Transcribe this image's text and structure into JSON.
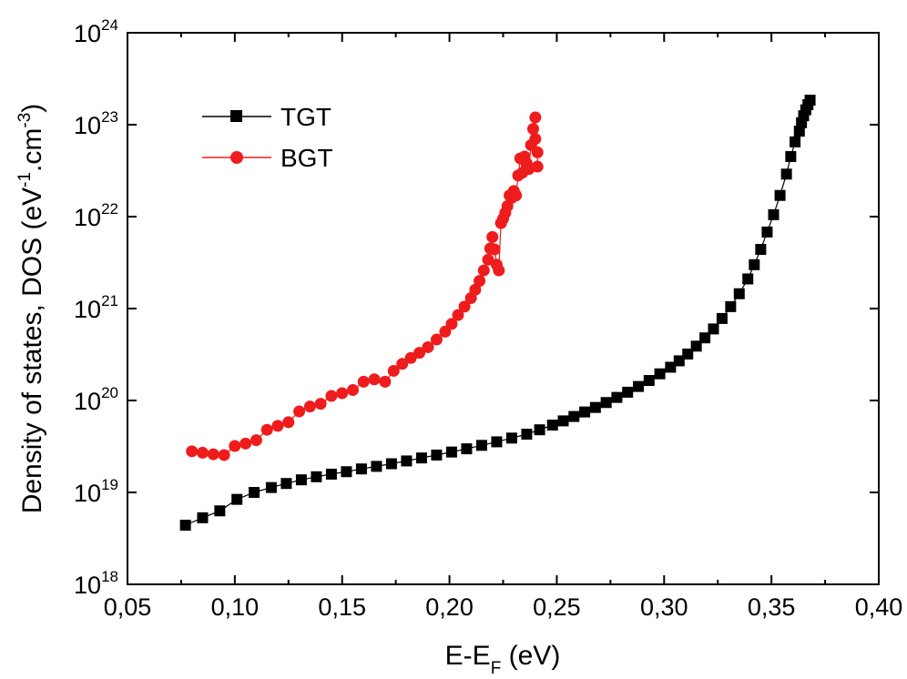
{
  "chart_data": {
    "type": "scatter",
    "title": "",
    "xlabel": {
      "main": "E-E",
      "sub": "F",
      "unit": " (eV)"
    },
    "ylabel": {
      "main": "Density of states, DOS (eV",
      "sup1": "-1",
      "mid": ".cm",
      "sup2": "-3",
      "end": ")"
    },
    "x_scale": "linear",
    "y_scale": "log",
    "xlim": [
      0.05,
      0.4
    ],
    "ylim": [
      1e+18,
      1e+24
    ],
    "x_ticks": [
      "0,05",
      "0,10",
      "0,15",
      "0,20",
      "0,25",
      "0,30",
      "0,35",
      "0,40"
    ],
    "x_tick_values": [
      0.05,
      0.1,
      0.15,
      0.2,
      0.25,
      0.3,
      0.35,
      0.4
    ],
    "y_ticks": [
      {
        "base": "10",
        "exp": "18",
        "value": 1e+18
      },
      {
        "base": "10",
        "exp": "19",
        "value": 1e+19
      },
      {
        "base": "10",
        "exp": "20",
        "value": 1e+20
      },
      {
        "base": "10",
        "exp": "21",
        "value": 1e+21
      },
      {
        "base": "10",
        "exp": "22",
        "value": 1e+22
      },
      {
        "base": "10",
        "exp": "23",
        "value": 1e+23
      },
      {
        "base": "10",
        "exp": "24",
        "value": 1e+24
      }
    ],
    "grid": false,
    "legend_position": "top-left",
    "series": [
      {
        "name": "TGT",
        "marker": "square",
        "color": "#000000",
        "x": [
          0.077,
          0.085,
          0.093,
          0.101,
          0.109,
          0.117,
          0.124,
          0.131,
          0.138,
          0.145,
          0.152,
          0.159,
          0.166,
          0.173,
          0.18,
          0.187,
          0.194,
          0.201,
          0.208,
          0.215,
          0.222,
          0.229,
          0.236,
          0.242,
          0.248,
          0.253,
          0.258,
          0.263,
          0.268,
          0.273,
          0.278,
          0.283,
          0.288,
          0.293,
          0.298,
          0.303,
          0.307,
          0.311,
          0.315,
          0.319,
          0.323,
          0.327,
          0.331,
          0.335,
          0.339,
          0.342,
          0.345,
          0.348,
          0.351,
          0.354,
          0.357,
          0.359,
          0.361,
          0.363,
          0.364,
          0.365,
          0.366,
          0.367,
          0.368
        ],
        "y": [
          4.4e+18,
          5.3e+18,
          6.3e+18,
          8.4e+18,
          1e+19,
          1.13e+19,
          1.25e+19,
          1.37e+19,
          1.48e+19,
          1.58e+19,
          1.68e+19,
          1.8e+19,
          1.92e+19,
          2.05e+19,
          2.2e+19,
          2.37e+19,
          2.55e+19,
          2.75e+19,
          2.98e+19,
          3.25e+19,
          3.55e+19,
          3.9e+19,
          4.3e+19,
          4.8e+19,
          5.4e+19,
          6e+19,
          6.7e+19,
          7.5e+19,
          8.4e+19,
          9.5e+19,
          1.08e+20,
          1.23e+20,
          1.42e+20,
          1.65e+20,
          1.95e+20,
          2.3e+20,
          2.7e+20,
          3.2e+20,
          3.9e+20,
          4.8e+20,
          6e+20,
          7.8e+20,
          1.05e+21,
          1.45e+21,
          2.1e+21,
          3e+21,
          4.4e+21,
          6.8e+21,
          1.05e+22,
          1.7e+22,
          2.9e+22,
          4.5e+22,
          6.5e+22,
          8.5e+22,
          1.05e+23,
          1.25e+23,
          1.45e+23,
          1.65e+23,
          1.85e+23
        ]
      },
      {
        "name": "BGT",
        "marker": "circle",
        "color": "#ee1c1c",
        "x": [
          0.08,
          0.085,
          0.09,
          0.095,
          0.1,
          0.105,
          0.11,
          0.115,
          0.12,
          0.125,
          0.13,
          0.135,
          0.14,
          0.145,
          0.15,
          0.155,
          0.16,
          0.165,
          0.17,
          0.174,
          0.178,
          0.182,
          0.186,
          0.19,
          0.194,
          0.198,
          0.201,
          0.204,
          0.207,
          0.21,
          0.212,
          0.214,
          0.216,
          0.218,
          0.219,
          0.22,
          0.221,
          0.222,
          0.223,
          0.224,
          0.225,
          0.226,
          0.227,
          0.228,
          0.229,
          0.23,
          0.231,
          0.232,
          0.233,
          0.234,
          0.235,
          0.236,
          0.237,
          0.238,
          0.239,
          0.24,
          0.24,
          0.241,
          0.241
        ],
        "y": [
          2.8e+19,
          2.7e+19,
          2.6e+19,
          2.55e+19,
          3.2e+19,
          3.4e+19,
          3.7e+19,
          4.8e+19,
          5.3e+19,
          5.8e+19,
          7.6e+19,
          8.6e+19,
          9.2e+19,
          1.12e+20,
          1.2e+20,
          1.3e+20,
          1.6e+20,
          1.7e+20,
          1.6e+20,
          2.1e+20,
          2.5e+20,
          2.9e+20,
          3.3e+20,
          3.8e+20,
          4.6e+20,
          5.6e+20,
          6.8e+20,
          8.5e+20,
          1.05e+21,
          1.3e+21,
          1.6e+21,
          2e+21,
          2.6e+21,
          3.4e+21,
          4.5e+21,
          6e+21,
          4.4e+21,
          3e+21,
          2.6e+21,
          8.5e+21,
          9.5e+21,
          1.1e+22,
          1.3e+22,
          1.7e+22,
          1.6e+22,
          1.9e+22,
          1.7e+22,
          2.8e+22,
          4.3e+22,
          3e+22,
          4.5e+22,
          3.8e+22,
          3.3e+22,
          6e+22,
          9e+22,
          1.2e+23,
          7e+22,
          5e+22,
          3.5e+22
        ]
      }
    ]
  }
}
